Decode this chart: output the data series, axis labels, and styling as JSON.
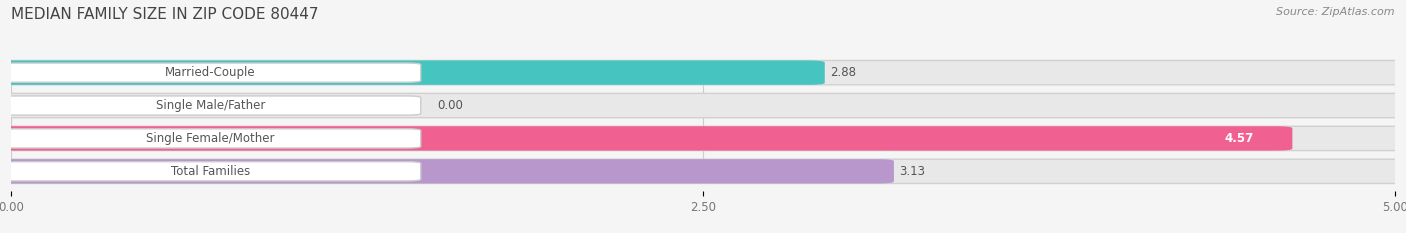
{
  "title": "MEDIAN FAMILY SIZE IN ZIP CODE 80447",
  "source": "Source: ZipAtlas.com",
  "categories": [
    "Married-Couple",
    "Single Male/Father",
    "Single Female/Mother",
    "Total Families"
  ],
  "values": [
    2.88,
    0.0,
    4.57,
    3.13
  ],
  "bar_colors": [
    "#45c4c0",
    "#a8b8e8",
    "#f06090",
    "#b898cc"
  ],
  "xlim": [
    0,
    5.0
  ],
  "xticks": [
    0.0,
    2.5,
    5.0
  ],
  "xtick_labels": [
    "0.00",
    "2.50",
    "5.00"
  ],
  "background_color": "#f0f0f0",
  "bar_track_color": "#e0e0e0",
  "bar_track_border": "#cccccc",
  "title_fontsize": 11,
  "source_fontsize": 8,
  "label_fontsize": 8.5,
  "value_fontsize": 8.5,
  "value_colors": [
    "#555555",
    "#555555",
    "#ffffff",
    "#ffffff"
  ]
}
